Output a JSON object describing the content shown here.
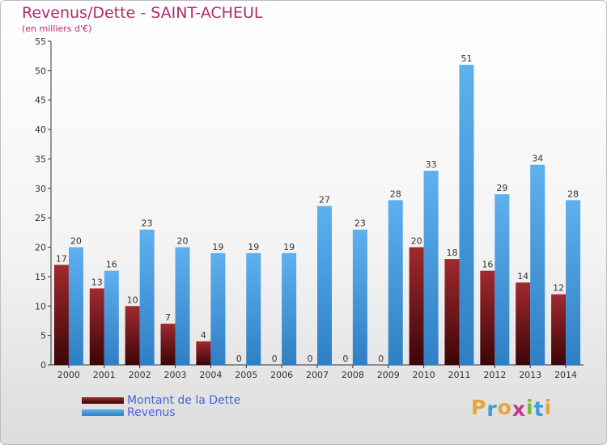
{
  "header": {
    "title": "Revenus/Dette - SAINT-ACHEUL",
    "subtitle": "(en milliers d'€)"
  },
  "legend": [
    {
      "label": "Montant de la Dette",
      "color": "#7a1419"
    },
    {
      "label": "Revenus",
      "color": "#4a9ee0"
    }
  ],
  "logo": {
    "text": "Proxiti",
    "colors": [
      "#e8a23a",
      "#3a9fd8",
      "#e8a23a",
      "#c23a8c",
      "#7ab83a",
      "#3a9fd8",
      "#e8a23a"
    ]
  },
  "chart_data": {
    "type": "bar",
    "categories": [
      "2000",
      "2001",
      "2002",
      "2003",
      "2004",
      "2005",
      "2006",
      "2007",
      "2008",
      "2009",
      "2010",
      "2011",
      "2012",
      "2013",
      "2014"
    ],
    "series": [
      {
        "name": "Montant de la Dette",
        "values": [
          17,
          13,
          10,
          7,
          4,
          0,
          0,
          0,
          0,
          0,
          20,
          18,
          16,
          14,
          12
        ],
        "color": "#7a1419"
      },
      {
        "name": "Revenus",
        "values": [
          20,
          16,
          23,
          20,
          19,
          19,
          19,
          27,
          23,
          28,
          33,
          51,
          29,
          34,
          28
        ],
        "color": "#4a9ee0"
      }
    ],
    "yticks": [
      0,
      5,
      10,
      15,
      20,
      25,
      30,
      35,
      40,
      45,
      50,
      55
    ],
    "ylim": [
      0,
      55
    ],
    "grid": false,
    "legend_position": "bottom-left"
  }
}
